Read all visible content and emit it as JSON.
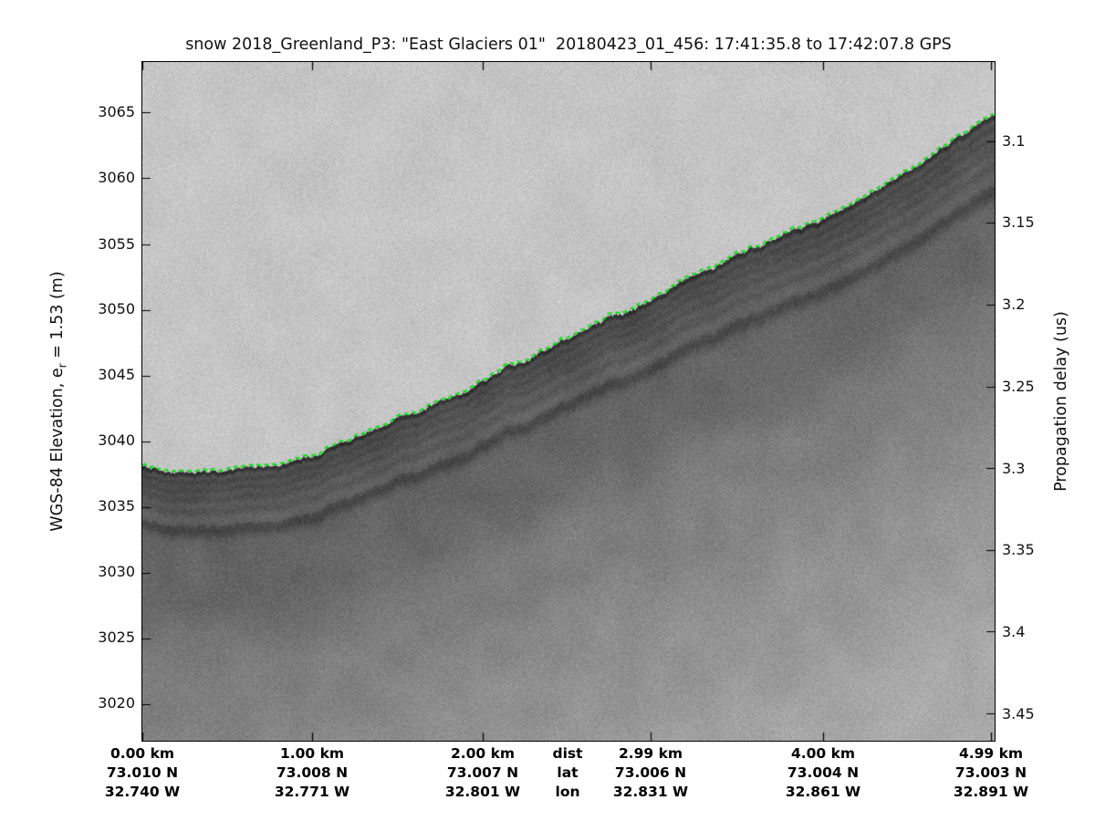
{
  "figure": {
    "title": "snow 2018_Greenland_P3: \"East Glaciers 01\"  20180423_01_456: 17:41:35.8 to 17:42:07.8 GPS",
    "background": "#ffffff"
  },
  "chart_data": {
    "type": "heatmap",
    "subtype": "radar-echogram",
    "title": "snow 2018_Greenland_P3: \"East Glaciers 01\"  20180423_01_456: 17:41:35.8 to 17:42:07.8 GPS",
    "grid": false,
    "legend": "none",
    "x_range_km": [
      0,
      5.01
    ],
    "left_axis": {
      "label_pre": "WGS-84 Elevation, e",
      "label_sub": "r",
      "label_post": " = 1.53 (m)",
      "ticks_m": [
        3065,
        3060,
        3055,
        3050,
        3045,
        3040,
        3035,
        3030,
        3025,
        3020
      ],
      "range_m": [
        3017.2,
        3068.85
      ]
    },
    "right_axis": {
      "label": "Propagation delay (us)",
      "ticks_us": [
        3.1,
        3.15,
        3.2,
        3.25,
        3.3,
        3.35,
        3.4,
        3.45
      ],
      "range_us": [
        3.0517,
        3.4667
      ]
    },
    "bottom_axis": {
      "row_keys": [
        "dist",
        "lat",
        "lon"
      ],
      "columns": [
        {
          "km": 0.0,
          "dist": "0.00 km",
          "lat": "73.010 N",
          "lon": "32.740 W"
        },
        {
          "km": 1.0,
          "dist": "1.00 km",
          "lat": "73.008 N",
          "lon": "32.771 W"
        },
        {
          "km": 2.0,
          "dist": "2.00 km",
          "lat": "73.007 N",
          "lon": "32.801 W"
        },
        {
          "km": 2.99,
          "dist": "2.99 km",
          "lat": "73.006 N",
          "lon": "32.831 W"
        },
        {
          "km": 4.0,
          "dist": "4.00 km",
          "lat": "73.004 N",
          "lon": "32.861 W"
        },
        {
          "km": 4.99,
          "dist": "4.99 km",
          "lat": "73.003 N",
          "lon": "32.891 W"
        }
      ]
    },
    "surface_pick": {
      "name": "snow-surface-pick",
      "color": "#12e01c",
      "style": "dashed",
      "points": [
        [
          0.0,
          3038.1
        ],
        [
          0.23,
          3037.6
        ],
        [
          0.55,
          3037.8
        ],
        [
          0.87,
          3038.5
        ],
        [
          1.3,
          3040.6
        ],
        [
          1.63,
          3042.4
        ],
        [
          1.96,
          3044.4
        ],
        [
          2.38,
          3047.0
        ],
        [
          2.7,
          3049.1
        ],
        [
          2.92,
          3050.3
        ],
        [
          3.24,
          3052.7
        ],
        [
          3.72,
          3055.4
        ],
        [
          3.99,
          3056.9
        ],
        [
          4.26,
          3058.8
        ],
        [
          4.53,
          3060.7
        ],
        [
          4.8,
          3063.1
        ],
        [
          5.01,
          3064.7
        ]
      ]
    },
    "colors": {
      "air_gray": "#c5c5c5",
      "subsurface_dark": "#555555",
      "deep_gray": "#a8a8a8",
      "axis": "#000000"
    }
  }
}
